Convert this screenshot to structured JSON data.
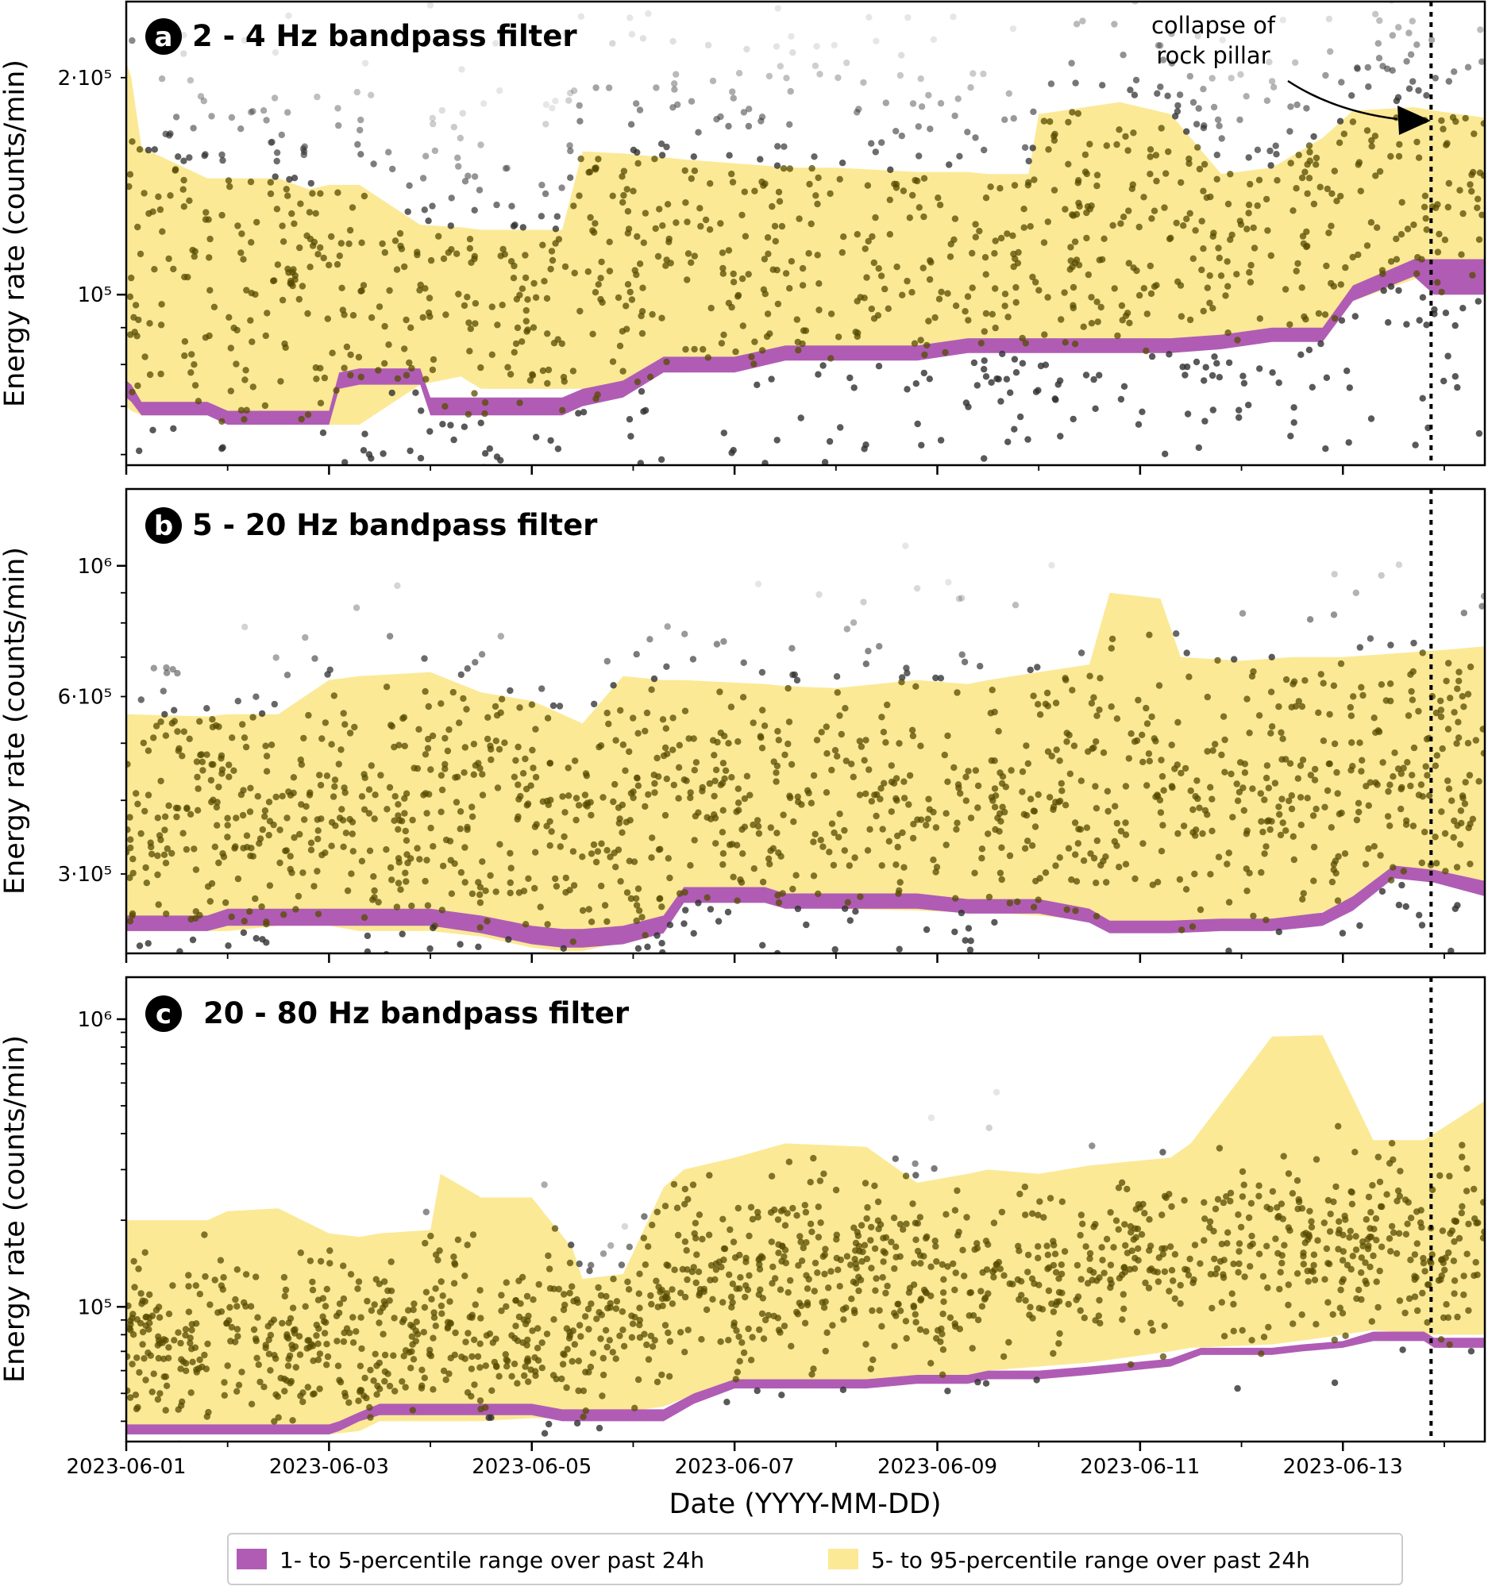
{
  "chart_data": {
    "type": "scatter",
    "shared_x": {
      "label": "Date (YYYY-MM-DD)",
      "ticks": [
        "2023-06-01",
        "2023-06-03",
        "2023-06-05",
        "2023-06-07",
        "2023-06-09",
        "2023-06-11",
        "2023-06-13"
      ],
      "tick_days": [
        0,
        2,
        4,
        6,
        8,
        10,
        12
      ],
      "range_days": [
        0,
        13.4
      ],
      "event_day": 12.87
    },
    "event_marker": {
      "label_line1": "collapse of",
      "label_line2": "rock pillar",
      "style": "dotted vertical line"
    },
    "legend": {
      "placement": "bottom-center",
      "entries": [
        {
          "label": "1- to 5-percentile range over past 24h",
          "color": "#b05cb5"
        },
        {
          "label": "5- to 95-percentile range over past 24h",
          "color": "#fbe996"
        }
      ]
    },
    "colors": {
      "p1_5": "#b05cb5",
      "p5_95": "#fbe996",
      "points_dark": "#574b00",
      "points_outlier": "#2f2f2f"
    },
    "panels": [
      {
        "letter": "a",
        "title": "2 - 4 Hz bandpass filter",
        "ylabel": "Energy rate (counts/min)",
        "yscale": "log",
        "ylim": [
          58000,
          255000
        ],
        "yticks": [
          {
            "value": 100000,
            "label": "10⁵"
          },
          {
            "value": 200000,
            "label": "2·10⁵"
          }
        ],
        "band_p5_95": {
          "days": [
            0,
            0.05,
            0.15,
            0.8,
            1.5,
            1.8,
            2.0,
            2.3,
            2.9,
            3.3,
            3.5,
            4.3,
            4.5,
            4.9,
            5.3,
            5.5,
            6.3,
            6.5,
            7.0,
            7.8,
            8.3,
            8.5,
            8.9,
            9.0,
            9.8,
            10.3,
            10.8,
            11.3,
            11.8,
            12.1,
            12.7,
            12.9,
            13.4
          ],
          "upper": [
            210000,
            200000,
            160000,
            145000,
            145000,
            140000,
            142000,
            142000,
            125000,
            124000,
            123000,
            123000,
            158000,
            157000,
            155000,
            154000,
            151000,
            150000,
            150000,
            148000,
            148000,
            147000,
            147000,
            178000,
            185000,
            178000,
            147000,
            150000,
            165000,
            180000,
            182000,
            180000,
            176000
          ],
          "lower": [
            70000,
            69000,
            68000,
            68000,
            66000,
            66000,
            66000,
            66000,
            75000,
            77000,
            74000,
            74000,
            74000,
            74000,
            78000,
            78000,
            82000,
            82000,
            83000,
            84000,
            84000,
            86000,
            86000,
            86000,
            86000,
            85000,
            85000,
            88000,
            88000,
            98000,
            105000,
            108000,
            108000
          ]
        },
        "band_p1_5": {
          "days": [
            0,
            0.05,
            0.15,
            0.8,
            1.0,
            1.5,
            2.0,
            2.1,
            2.3,
            2.9,
            3.0,
            3.5,
            4.3,
            4.5,
            4.9,
            5.3,
            6.0,
            6.5,
            7.3,
            7.8,
            8.3,
            9.0,
            9.8,
            10.3,
            10.8,
            11.3,
            11.8,
            12.1,
            12.7,
            12.9,
            13.4
          ],
          "upper": [
            76000,
            75000,
            71000,
            71000,
            69000,
            69000,
            69000,
            78000,
            79000,
            79000,
            72000,
            72000,
            72000,
            74000,
            76000,
            82000,
            82000,
            85000,
            85000,
            85000,
            87000,
            87000,
            87000,
            87000,
            88000,
            90000,
            90000,
            103000,
            112000,
            112000,
            112000
          ],
          "lower": [
            72000,
            71000,
            68000,
            68000,
            66000,
            66000,
            66000,
            74000,
            75000,
            75000,
            68000,
            68000,
            68000,
            70000,
            72000,
            78000,
            78000,
            81000,
            81000,
            81000,
            83000,
            83000,
            83000,
            83000,
            84000,
            86000,
            86000,
            98000,
            106000,
            100000,
            100000
          ]
        },
        "points_median_profile": {
          "days": [
            0,
            0.5,
            1.0,
            1.5,
            2.0,
            2.5,
            3.0,
            3.5,
            4.0,
            4.5,
            5.0,
            5.5,
            6.0,
            6.5,
            7.0,
            7.5,
            8.0,
            8.5,
            9.0,
            9.5,
            10.0,
            10.5,
            11.0,
            11.5,
            12.0,
            12.5,
            13.0,
            13.4
          ],
          "values": [
            100000,
            130000,
            90000,
            125000,
            100000,
            110000,
            95000,
            100000,
            90000,
            115000,
            100000,
            130000,
            110000,
            130000,
            110000,
            130000,
            110000,
            120000,
            110000,
            120000,
            115000,
            120000,
            120000,
            125000,
            140000,
            150000,
            130000,
            140000
          ]
        }
      },
      {
        "letter": "b",
        "title": "5 - 20 Hz bandpass filter",
        "ylabel": "Energy rate (counts/min)",
        "yscale": "log",
        "ylim": [
          220000,
          1350000
        ],
        "yticks": [
          {
            "value": 300000,
            "label": "3·10⁵"
          },
          {
            "value": 600000,
            "label": "6·10⁵"
          },
          {
            "value": 1000000,
            "label": "10⁶"
          }
        ],
        "band_p5_95": {
          "days": [
            0,
            0.8,
            1.0,
            1.5,
            2.0,
            2.3,
            3.0,
            3.5,
            4.0,
            4.3,
            4.5,
            4.9,
            5.3,
            5.5,
            6.3,
            6.5,
            7.0,
            7.8,
            8.3,
            8.5,
            9.0,
            9.5,
            9.7,
            10.2,
            10.4,
            11.0,
            11.5,
            12.0,
            12.5,
            13.0,
            13.4
          ],
          "upper": [
            560000,
            555000,
            560000,
            560000,
            640000,
            650000,
            660000,
            610000,
            590000,
            560000,
            540000,
            650000,
            640000,
            640000,
            630000,
            625000,
            620000,
            640000,
            630000,
            640000,
            660000,
            680000,
            900000,
            880000,
            700000,
            690000,
            700000,
            700000,
            710000,
            720000,
            730000
          ],
          "lower": [
            240000,
            240000,
            240000,
            245000,
            245000,
            240000,
            240000,
            235000,
            225000,
            222000,
            222000,
            230000,
            240000,
            275000,
            270000,
            265000,
            262000,
            260000,
            258000,
            258000,
            255000,
            250000,
            240000,
            240000,
            240000,
            245000,
            250000,
            265000,
            300000,
            295000,
            290000
          ]
        },
        "band_p1_5": {
          "days": [
            0,
            0.8,
            1.0,
            1.5,
            2.0,
            2.3,
            3.0,
            3.5,
            4.0,
            4.3,
            4.5,
            4.9,
            5.3,
            5.5,
            6.3,
            6.5,
            7.3,
            7.8,
            8.3,
            8.5,
            9.0,
            9.5,
            9.7,
            10.3,
            10.8,
            11.3,
            11.8,
            12.1,
            12.5,
            12.9,
            13.4
          ],
          "upper": [
            255000,
            255000,
            262000,
            262000,
            262000,
            262000,
            262000,
            255000,
            245000,
            242000,
            242000,
            245000,
            255000,
            285000,
            285000,
            278000,
            278000,
            278000,
            272000,
            272000,
            272000,
            262000,
            250000,
            250000,
            252000,
            252000,
            258000,
            275000,
            310000,
            305000,
            292000
          ],
          "lower": [
            240000,
            240000,
            245000,
            245000,
            245000,
            245000,
            245000,
            238000,
            228000,
            225000,
            225000,
            228000,
            238000,
            268000,
            268000,
            262000,
            262000,
            262000,
            257000,
            257000,
            257000,
            248000,
            238000,
            238000,
            240000,
            240000,
            245000,
            260000,
            295000,
            290000,
            275000
          ]
        },
        "points_median_profile": {
          "days": [
            0,
            1,
            2,
            3,
            4,
            5,
            6,
            7,
            8,
            9,
            10,
            11,
            12,
            13,
            13.4
          ],
          "values": [
            380000,
            370000,
            390000,
            380000,
            340000,
            400000,
            400000,
            400000,
            390000,
            400000,
            420000,
            410000,
            420000,
            440000,
            450000
          ]
        }
      },
      {
        "letter": "c",
        "title": "20 - 80 Hz bandpass filter",
        "ylabel": "Energy rate (counts/min)",
        "yscale": "log",
        "ylim": [
          34000,
          1400000
        ],
        "yticks": [
          {
            "value": 100000,
            "label": "10⁵"
          },
          {
            "value": 1000000,
            "label": "10⁶"
          }
        ],
        "band_p5_95": {
          "days": [
            0,
            0.8,
            1.0,
            1.5,
            2.0,
            2.3,
            2.5,
            3.0,
            3.1,
            3.5,
            4.0,
            4.4,
            4.5,
            4.9,
            5.3,
            5.5,
            6.0,
            6.5,
            7.3,
            7.8,
            8.3,
            8.5,
            9.0,
            9.5,
            10.3,
            10.5,
            11.3,
            11.8,
            12.3,
            12.8,
            13.4
          ],
          "upper": [
            200000,
            200000,
            215000,
            220000,
            180000,
            175000,
            180000,
            185000,
            290000,
            240000,
            240000,
            160000,
            125000,
            130000,
            260000,
            300000,
            330000,
            370000,
            360000,
            270000,
            290000,
            300000,
            290000,
            310000,
            330000,
            370000,
            870000,
            880000,
            380000,
            380000,
            520000
          ],
          "lower": [
            36000,
            36000,
            36000,
            36000,
            36000,
            37000,
            40000,
            40000,
            40000,
            40000,
            41000,
            41000,
            42000,
            43000,
            45000,
            48000,
            52000,
            54000,
            55000,
            56000,
            58000,
            60000,
            62000,
            64000,
            70000,
            72000,
            74000,
            78000,
            83000,
            80000,
            80000
          ]
        },
        "band_p1_5": {
          "days": [
            0,
            0.8,
            1.0,
            1.5,
            2.0,
            2.1,
            2.3,
            2.5,
            3.0,
            3.5,
            4.0,
            4.3,
            4.5,
            4.9,
            5.3,
            5.6,
            6.0,
            6.5,
            7.3,
            7.8,
            8.3,
            8.5,
            9.0,
            9.5,
            10.3,
            10.6,
            11.3,
            11.6,
            12.0,
            12.3,
            12.8,
            12.9,
            13.4
          ],
          "upper": [
            39000,
            39000,
            39000,
            39000,
            39000,
            40000,
            43000,
            46000,
            46000,
            46000,
            46000,
            44000,
            44000,
            44000,
            44000,
            50000,
            56000,
            56000,
            56000,
            58000,
            58000,
            60000,
            60000,
            62000,
            66000,
            72000,
            72000,
            74000,
            76000,
            82000,
            82000,
            78000,
            78000
          ],
          "lower": [
            36000,
            36000,
            36000,
            36000,
            36000,
            37000,
            40000,
            42000,
            42000,
            42000,
            42000,
            40000,
            40000,
            40000,
            40000,
            46000,
            52000,
            52000,
            52000,
            54000,
            54000,
            56000,
            56000,
            58000,
            62000,
            68000,
            68000,
            70000,
            72000,
            76000,
            76000,
            72000,
            72000
          ]
        },
        "points_median_profile": {
          "days": [
            0,
            0.5,
            1.0,
            1.5,
            2.0,
            2.5,
            3.0,
            3.5,
            4.0,
            4.5,
            5.0,
            5.5,
            6.0,
            6.5,
            7.0,
            7.5,
            8.0,
            8.5,
            9.0,
            9.5,
            10.0,
            10.5,
            11.0,
            11.5,
            12.0,
            12.5,
            13.0,
            13.4
          ],
          "values": [
            80000,
            70000,
            85000,
            65000,
            90000,
            70000,
            95000,
            70000,
            80000,
            75000,
            90000,
            120000,
            110000,
            140000,
            120000,
            140000,
            120000,
            140000,
            130000,
            140000,
            150000,
            150000,
            160000,
            170000,
            170000,
            170000,
            150000,
            170000
          ]
        }
      }
    ]
  }
}
